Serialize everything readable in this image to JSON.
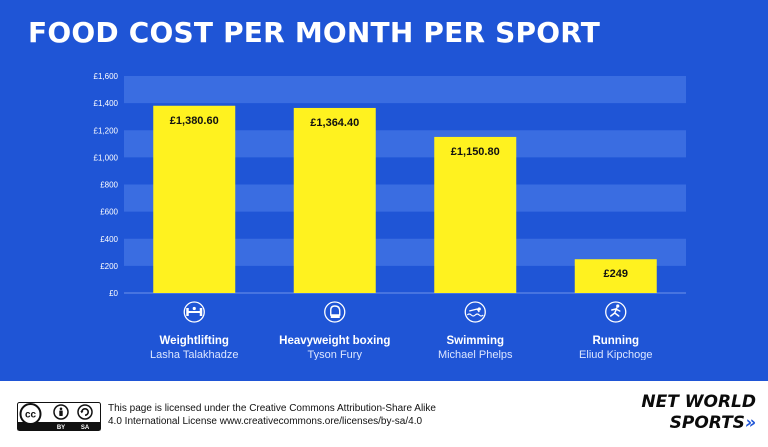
{
  "title": "FOOD COST PER MONTH PER SPORT",
  "colors": {
    "background": "#1f55d6",
    "bar": "#fff21f",
    "band": "#3a6de1",
    "text": "#ffffff",
    "accent": "#1f55d6"
  },
  "chart_data": {
    "type": "bar",
    "categories": [
      "Weightlifting",
      "Heavyweight boxing",
      "Swimming",
      "Running"
    ],
    "athletes": [
      "Lasha Talakhadze",
      "Tyson Fury",
      "Michael Phelps",
      "Eliud Kipchoge"
    ],
    "icons": [
      "weightlifting-icon",
      "boxing-glove-icon",
      "swimming-icon",
      "running-icon"
    ],
    "values": [
      1380.6,
      1364.4,
      1150.8,
      249
    ],
    "value_labels": [
      "£1,380.60",
      "£1,364.40",
      "£1,150.80",
      "£249"
    ],
    "yticks": [
      0,
      200,
      400,
      600,
      800,
      1000,
      1200,
      1400,
      1600
    ],
    "ytick_labels": [
      "£0",
      "£200",
      "£400",
      "£600",
      "£800",
      "£1,000",
      "£1,200",
      "£1,400",
      "£1,600"
    ],
    "ylim": [
      0,
      1600
    ],
    "grid": "alternating horizontal bands",
    "legend": "none"
  },
  "footer": {
    "cc_label": "cc",
    "cc_by": "BY",
    "cc_sa": "SA",
    "license_text": "This page is licensed under the Creative Commons Attribution-Share Alike\n4.0 International License www.creativecommons.ore/licenses/by-sa/4.0",
    "brand_line1": "NET WORLD",
    "brand_line2": "SPORTS",
    "brand_chevrons": "»"
  }
}
